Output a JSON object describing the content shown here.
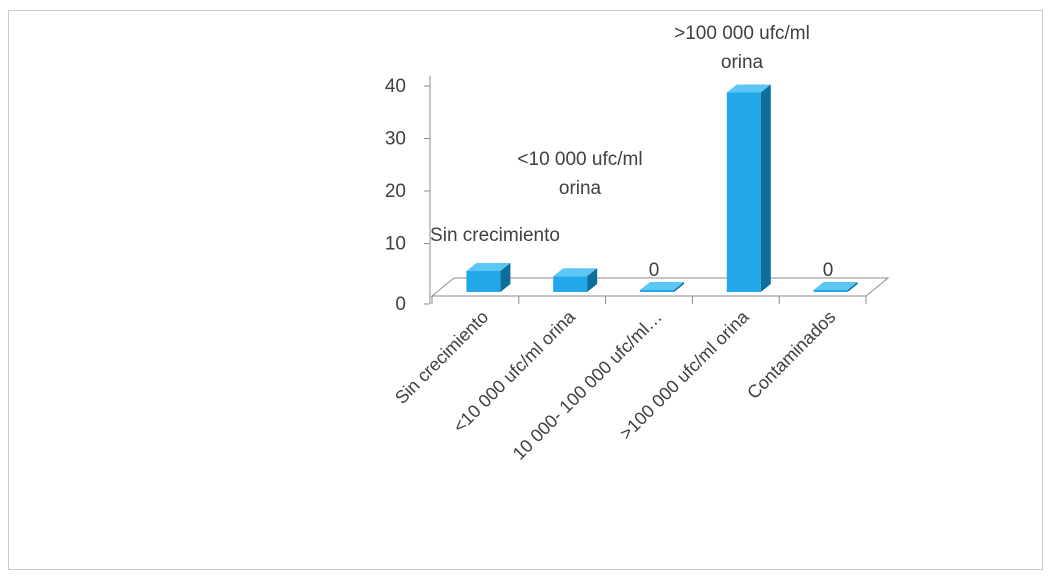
{
  "chart_data": {
    "type": "bar",
    "title": "",
    "xlabel": "",
    "ylabel": "",
    "categories": [
      "Sin crecimiento",
      "<10 000 ufc/ml orina",
      "10 000- 100 000 ufc/ml…",
      ">100 000 ufc/ml orina",
      "Contaminados"
    ],
    "values": [
      4,
      3,
      0,
      38,
      0
    ],
    "data_labels": [
      [
        "Sin crecimiento"
      ],
      [
        "<10 000 ufc/ml",
        "orina"
      ],
      [
        "0"
      ],
      [
        ">100 000 ufc/ml",
        "orina"
      ],
      [
        "0"
      ]
    ],
    "yticks": [
      "0",
      "10",
      "20",
      "30",
      "40"
    ],
    "ylim": [
      0,
      40
    ],
    "grid": false,
    "legend": "none",
    "colors": {
      "front": "#22a7e8",
      "top": "#5cc6f4",
      "side": "#0d6e9c",
      "floor": "#ffffff"
    }
  }
}
